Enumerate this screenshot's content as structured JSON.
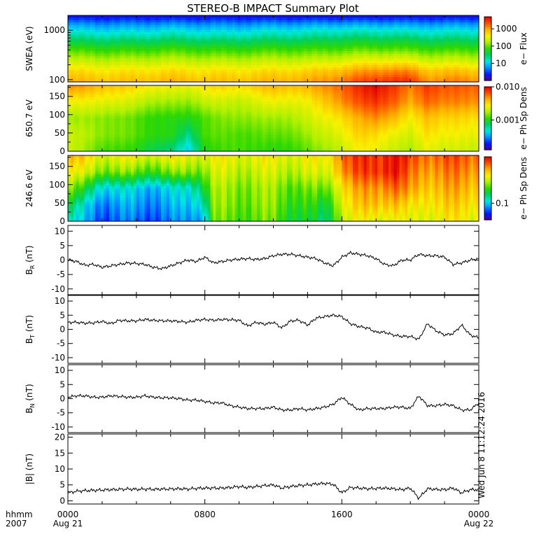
{
  "title": "STEREO-B IMPACT Summary Plot",
  "stamp": "Wed Jun  8 11:12:24 2016",
  "time_axis": {
    "corner_top": "hhmm",
    "corner_bottom": "2007",
    "ticks": [
      {
        "label": "0000",
        "sub": "Aug 21"
      },
      {
        "label": "0800",
        "sub": ""
      },
      {
        "label": "1600",
        "sub": ""
      },
      {
        "label": "0000",
        "sub": "Aug 22"
      }
    ]
  },
  "colors": {
    "colormap": [
      "#5000a0",
      "#0018ff",
      "#0090ff",
      "#00e8e0",
      "#00d060",
      "#30d800",
      "#b0f000",
      "#f8f000",
      "#ffb000",
      "#ff5000",
      "#e00000"
    ],
    "line": "#000000",
    "frame": "#000000"
  },
  "chart_data": [
    {
      "type": "heatmap",
      "ylabel": "SWEA (eV)",
      "yscale": "log",
      "ylim": [
        90,
        2000
      ],
      "yticks": [
        "1000",
        "100"
      ],
      "colorbar": {
        "label": "e− Flux",
        "ticks": [
          "1000",
          "100",
          "10"
        ],
        "range_log": [
          0,
          3.7
        ]
      },
      "x_hours": [
        0,
        2,
        4,
        6,
        8,
        10,
        12,
        14,
        15,
        16,
        17,
        18,
        19,
        20,
        21,
        22,
        23,
        24
      ],
      "energy_eV": [
        100,
        150,
        250,
        400,
        700,
        1200,
        1900
      ],
      "flux": [
        [
          800,
          500,
          200,
          80,
          25,
          8,
          2
        ],
        [
          700,
          450,
          180,
          70,
          22,
          7,
          2
        ],
        [
          700,
          450,
          180,
          70,
          22,
          7,
          2
        ],
        [
          800,
          500,
          200,
          80,
          25,
          8,
          2
        ],
        [
          700,
          450,
          180,
          70,
          22,
          7,
          2
        ],
        [
          700,
          450,
          180,
          70,
          22,
          7,
          2
        ],
        [
          800,
          500,
          200,
          80,
          25,
          8,
          2
        ],
        [
          900,
          550,
          200,
          80,
          25,
          8,
          2
        ],
        [
          1100,
          650,
          220,
          85,
          28,
          9,
          2
        ],
        [
          1400,
          800,
          250,
          90,
          30,
          9,
          2
        ],
        [
          2000,
          1000,
          300,
          100,
          30,
          9,
          2
        ],
        [
          2500,
          1200,
          320,
          100,
          30,
          9,
          2
        ],
        [
          2800,
          1300,
          330,
          100,
          30,
          9,
          2
        ],
        [
          2500,
          1200,
          300,
          90,
          28,
          8,
          2
        ],
        [
          1200,
          700,
          220,
          80,
          25,
          8,
          2
        ],
        [
          1200,
          700,
          220,
          80,
          25,
          8,
          2
        ],
        [
          1300,
          700,
          220,
          80,
          25,
          8,
          2
        ],
        [
          1100,
          650,
          200,
          80,
          25,
          8,
          2
        ]
      ]
    },
    {
      "type": "heatmap",
      "ylabel": "650.7 eV",
      "ylim": [
        0,
        180
      ],
      "yticks": [
        "150",
        "100",
        "50",
        "0"
      ],
      "colorbar": {
        "label": "e− Ph Sp Dens",
        "ticks": [
          "0.010",
          "0.001"
        ],
        "range_log": [
          -3.9,
          -2.0
        ]
      },
      "x_hours": [
        0,
        2,
        4,
        6,
        7,
        8,
        10,
        12,
        14,
        16,
        17,
        18,
        19,
        20,
        21,
        22,
        24
      ],
      "pitch_deg": [
        0,
        45,
        90,
        135,
        180
      ],
      "log_psd": [
        [
          -2.7,
          -2.7,
          -2.8,
          -2.6,
          -2.3
        ],
        [
          -2.9,
          -2.8,
          -2.8,
          -2.6,
          -2.4
        ],
        [
          -3.0,
          -2.9,
          -2.9,
          -2.7,
          -2.5
        ],
        [
          -3.2,
          -3.0,
          -3.0,
          -2.8,
          -2.6
        ],
        [
          -3.4,
          -3.2,
          -3.0,
          -2.8,
          -2.6
        ],
        [
          -3.0,
          -2.9,
          -2.9,
          -2.7,
          -2.5
        ],
        [
          -2.9,
          -2.9,
          -2.8,
          -2.7,
          -2.5
        ],
        [
          -3.0,
          -2.9,
          -2.8,
          -2.6,
          -2.4
        ],
        [
          -2.9,
          -2.8,
          -2.7,
          -2.6,
          -2.4
        ],
        [
          -2.7,
          -2.6,
          -2.5,
          -2.3,
          -2.2
        ],
        [
          -2.6,
          -2.5,
          -2.4,
          -2.2,
          -2.1
        ],
        [
          -2.6,
          -2.5,
          -2.3,
          -2.1,
          -2.0
        ],
        [
          -2.7,
          -2.6,
          -2.4,
          -2.2,
          -2.1
        ],
        [
          -2.8,
          -2.7,
          -2.6,
          -2.4,
          -2.3
        ],
        [
          -2.6,
          -2.5,
          -2.4,
          -2.2,
          -2.1
        ],
        [
          -2.7,
          -2.6,
          -2.5,
          -2.3,
          -2.2
        ],
        [
          -2.7,
          -2.6,
          -2.5,
          -2.3,
          -2.2
        ]
      ]
    },
    {
      "type": "heatmap",
      "ylabel": "246.6 eV",
      "ylim": [
        0,
        180
      ],
      "yticks": [
        "150",
        "100",
        "50",
        "0"
      ],
      "colorbar": {
        "label": "e− Ph Sp Dens",
        "ticks": [
          "0.1"
        ],
        "range_log": [
          -1.25,
          -0.3
        ]
      },
      "x_hours": [
        0,
        1,
        2,
        4,
        6,
        7,
        8,
        8.5,
        10,
        12,
        14,
        15,
        16,
        18,
        19,
        20,
        21,
        22,
        24
      ],
      "pitch_deg": [
        0,
        45,
        90,
        135,
        180
      ],
      "log_psd": [
        [
          -0.95,
          -0.85,
          -0.7,
          -0.6,
          -0.5
        ],
        [
          -1.05,
          -1.0,
          -0.85,
          -0.65,
          -0.55
        ],
        [
          -1.1,
          -1.05,
          -0.95,
          -0.7,
          -0.6
        ],
        [
          -1.1,
          -1.05,
          -1.0,
          -0.75,
          -0.6
        ],
        [
          -1.1,
          -1.05,
          -1.0,
          -0.75,
          -0.6
        ],
        [
          -1.05,
          -1.0,
          -0.95,
          -0.7,
          -0.6
        ],
        [
          -1.0,
          -0.9,
          -0.8,
          -0.7,
          -0.6
        ],
        [
          -0.75,
          -0.72,
          -0.7,
          -0.65,
          -0.6
        ],
        [
          -0.75,
          -0.72,
          -0.7,
          -0.65,
          -0.6
        ],
        [
          -0.75,
          -0.72,
          -0.7,
          -0.65,
          -0.6
        ],
        [
          -0.85,
          -0.8,
          -0.75,
          -0.65,
          -0.6
        ],
        [
          -0.9,
          -0.85,
          -0.75,
          -0.65,
          -0.6
        ],
        [
          -0.65,
          -0.6,
          -0.55,
          -0.45,
          -0.4
        ],
        [
          -0.6,
          -0.5,
          -0.45,
          -0.35,
          -0.35
        ],
        [
          -0.6,
          -0.5,
          -0.4,
          -0.3,
          -0.3
        ],
        [
          -0.65,
          -0.6,
          -0.5,
          -0.45,
          -0.4
        ],
        [
          -0.6,
          -0.55,
          -0.5,
          -0.45,
          -0.4
        ],
        [
          -0.6,
          -0.55,
          -0.5,
          -0.45,
          -0.4
        ],
        [
          -0.6,
          -0.55,
          -0.5,
          -0.45,
          -0.4
        ]
      ]
    },
    {
      "type": "line",
      "ylabel": "B",
      "ysub": "R",
      "yunit": " (nT)",
      "ylim": [
        -12,
        12
      ],
      "yticks": [
        10,
        5,
        0,
        -5,
        -10
      ],
      "x_hours": [
        0,
        0.5,
        1,
        1.5,
        2,
        2.5,
        3,
        3.5,
        4,
        4.5,
        5,
        5.5,
        6,
        6.5,
        7,
        7.5,
        8,
        8.5,
        9,
        9.5,
        10,
        10.5,
        11,
        11.5,
        12,
        12.5,
        13,
        13.5,
        14,
        14.5,
        15,
        15.5,
        16,
        16.5,
        17,
        17.5,
        18,
        18.5,
        19,
        19.5,
        20,
        20.5,
        21,
        21.5,
        22,
        22.5,
        23,
        23.5,
        24
      ],
      "values": [
        0,
        -0.5,
        -1.8,
        -1.5,
        -2.5,
        -2,
        -1.5,
        -1,
        -1.2,
        -1.5,
        -2.5,
        -3,
        -2,
        -1,
        0,
        -0.5,
        1,
        -1,
        -0.5,
        0,
        0.3,
        0.5,
        0.2,
        0.5,
        1.5,
        2,
        2,
        1.5,
        1,
        0.5,
        -1,
        -2,
        1,
        2.5,
        2,
        1.5,
        0.5,
        -1.5,
        -2,
        0,
        0,
        2,
        1.5,
        1.5,
        1,
        -1.5,
        -1,
        0,
        0.5
      ]
    },
    {
      "type": "line",
      "ylabel": "B",
      "ysub": "T",
      "yunit": " (nT)",
      "ylim": [
        -12,
        12
      ],
      "yticks": [
        10,
        5,
        0,
        -5,
        -10
      ],
      "x_hours": [
        0,
        0.5,
        1,
        1.5,
        2,
        2.5,
        3,
        3.5,
        4,
        4.5,
        5,
        5.5,
        6,
        6.5,
        7,
        7.5,
        8,
        8.5,
        9,
        9.5,
        10,
        10.5,
        11,
        11.5,
        12,
        12.5,
        13,
        13.5,
        14,
        14.5,
        15,
        15.5,
        16,
        16.5,
        17,
        17.5,
        18,
        18.5,
        19,
        19.5,
        20,
        20.5,
        21,
        21.5,
        22,
        22.5,
        23,
        23.5,
        24
      ],
      "values": [
        2.5,
        2.5,
        2.2,
        2.3,
        2.8,
        2.0,
        3.2,
        3.0,
        3.0,
        3.5,
        3.2,
        3.0,
        3.0,
        2.8,
        2.5,
        3.2,
        3.5,
        3.2,
        3.5,
        3.4,
        3.2,
        1.2,
        2.5,
        1.8,
        2.5,
        0.5,
        3.0,
        3.2,
        1.5,
        4.0,
        4.5,
        5.0,
        4.5,
        2.0,
        1.0,
        0.5,
        -1.0,
        -1.0,
        -2.0,
        -2.5,
        -2.5,
        -3.5,
        2.0,
        -0.5,
        -2.0,
        -1.5,
        1.5,
        -2.0,
        -3.0
      ]
    },
    {
      "type": "line",
      "ylabel": "B",
      "ysub": "N",
      "yunit": " (nT)",
      "ylim": [
        -12,
        12
      ],
      "yticks": [
        10,
        5,
        0,
        -5,
        -10
      ],
      "x_hours": [
        0,
        0.5,
        1,
        1.5,
        2,
        2.5,
        3,
        3.5,
        4,
        4.5,
        5,
        5.5,
        6,
        6.5,
        7,
        7.5,
        8,
        8.5,
        9,
        9.5,
        10,
        10.5,
        11,
        11.5,
        12,
        12.5,
        13,
        13.5,
        14,
        14.5,
        15,
        15.5,
        16,
        16.5,
        17,
        17.5,
        18,
        18.5,
        19,
        19.5,
        20,
        20.5,
        21,
        21.5,
        22,
        22.5,
        23,
        23.5,
        24
      ],
      "values": [
        0.5,
        1.0,
        1.0,
        0.5,
        0.5,
        1.0,
        0.8,
        0.5,
        0.5,
        1.0,
        0.5,
        0.3,
        0.3,
        0.0,
        -0.5,
        -0.5,
        -1.0,
        -1.5,
        -1.5,
        -2.5,
        -3.0,
        -3.5,
        -3.5,
        -3.5,
        -3.0,
        -4.0,
        -4.0,
        -3.5,
        -4.0,
        -3.5,
        -3.0,
        -2.0,
        0.5,
        -2.0,
        -4.0,
        -3.5,
        -3.5,
        -3.5,
        -3.0,
        -3.0,
        -3.5,
        1.0,
        -2.5,
        -2.5,
        -2.0,
        -2.5,
        -4.0,
        -4.0,
        -1.5
      ]
    },
    {
      "type": "line",
      "ylabel": "|B|",
      "ysub": "",
      "yunit": " (nT)",
      "ylim": [
        -1,
        21
      ],
      "yticks": [
        20,
        15,
        10,
        5,
        0
      ],
      "x_hours": [
        0,
        0.5,
        1,
        1.5,
        2,
        2.5,
        3,
        3.5,
        4,
        4.5,
        5,
        5.5,
        6,
        6.5,
        7,
        7.5,
        8,
        8.5,
        9,
        9.5,
        10,
        10.5,
        11,
        11.5,
        12,
        12.5,
        13,
        13.5,
        14,
        14.5,
        15,
        15.5,
        16,
        16.5,
        17,
        17.5,
        18,
        18.5,
        19,
        19.5,
        20,
        20.5,
        21,
        21.5,
        22,
        22.5,
        23,
        23.5,
        24
      ],
      "values": [
        2.5,
        3.0,
        3.2,
        3.3,
        3.4,
        3.5,
        3.6,
        3.7,
        3.6,
        3.7,
        3.6,
        3.7,
        3.7,
        3.8,
        3.7,
        3.9,
        4.0,
        4.0,
        4.0,
        4.2,
        4.5,
        4.2,
        4.5,
        4.8,
        5.0,
        4.0,
        4.5,
        4.8,
        5.0,
        5.3,
        5.5,
        5.2,
        2.5,
        4.2,
        4.0,
        3.8,
        3.9,
        4.0,
        3.8,
        3.5,
        4.0,
        0.8,
        3.8,
        3.6,
        3.5,
        4.0,
        2.5,
        3.5,
        3.5
      ]
    }
  ]
}
